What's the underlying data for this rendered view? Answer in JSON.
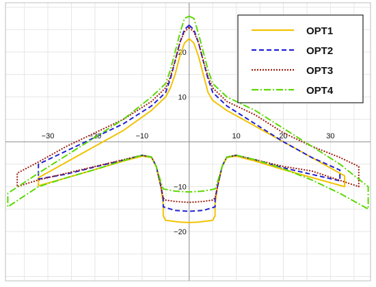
{
  "chart_data": {
    "type": "line",
    "title": "",
    "xlabel": "",
    "ylabel": "",
    "xlim": [
      -39,
      38.5
    ],
    "ylim": [
      -31,
      31
    ],
    "grid": true,
    "legend_position": "top-right",
    "x_ticks": [
      {
        "value": -30,
        "label": "−30"
      },
      {
        "value": -20,
        "label": "−20"
      },
      {
        "value": -10,
        "label": "−10"
      },
      {
        "value": 10,
        "label": "10"
      },
      {
        "value": 20,
        "label": "20"
      },
      {
        "value": 30,
        "label": "30"
      }
    ],
    "y_ticks": [
      {
        "value": 20,
        "label": "20"
      },
      {
        "value": 10,
        "label": "10"
      },
      {
        "value": -10,
        "label": "−10"
      },
      {
        "value": -20,
        "label": "−20"
      }
    ],
    "series": [
      {
        "name": "OPT1",
        "color": "#f2c200",
        "dash": "solid",
        "points": [
          [
            0,
            23
          ],
          [
            1,
            22
          ],
          [
            2,
            19
          ],
          [
            3,
            15
          ],
          [
            4,
            11
          ],
          [
            5,
            9.2
          ],
          [
            8,
            7
          ],
          [
            14,
            3.5
          ],
          [
            20,
            0
          ],
          [
            26,
            -3.5
          ],
          [
            33,
            -7.6
          ],
          [
            33,
            -10
          ],
          [
            20,
            -6.2
          ],
          [
            14,
            -4.3
          ],
          [
            10,
            -3.2
          ],
          [
            8,
            -3.5
          ],
          [
            7,
            -5.5
          ],
          [
            6,
            -10
          ],
          [
            5.5,
            -14
          ],
          [
            5.5,
            -16.5
          ],
          [
            5,
            -17.5
          ],
          [
            2,
            -17.9
          ],
          [
            0,
            -18
          ],
          [
            -2,
            -17.9
          ],
          [
            -5,
            -17.5
          ],
          [
            -5.5,
            -16.5
          ],
          [
            -5.5,
            -14
          ],
          [
            -6,
            -10
          ],
          [
            -7,
            -5.5
          ],
          [
            -8,
            -3.5
          ],
          [
            -10,
            -3.2
          ],
          [
            -14,
            -4.3
          ],
          [
            -20,
            -6.2
          ],
          [
            -26,
            -8
          ],
          [
            -32,
            -9.8
          ],
          [
            -32,
            -8
          ],
          [
            -26,
            -4.5
          ],
          [
            -20,
            -1
          ],
          [
            -14,
            2.5
          ],
          [
            -8,
            7
          ],
          [
            -5,
            10
          ],
          [
            -4,
            12
          ],
          [
            -3,
            15
          ],
          [
            -2,
            19
          ],
          [
            -1,
            22
          ],
          [
            0,
            23
          ]
        ]
      },
      {
        "name": "OPT2",
        "color": "#1f1fd6",
        "dash": "7,4",
        "points": [
          [
            0,
            26
          ],
          [
            1,
            25
          ],
          [
            2,
            22
          ],
          [
            3,
            18
          ],
          [
            4,
            14
          ],
          [
            5,
            11
          ],
          [
            8,
            8
          ],
          [
            14,
            4
          ],
          [
            20,
            0
          ],
          [
            26,
            -3.5
          ],
          [
            32,
            -6.3
          ],
          [
            32,
            -8.7
          ],
          [
            20,
            -5.8
          ],
          [
            14,
            -4
          ],
          [
            10,
            -3
          ],
          [
            8,
            -3.4
          ],
          [
            7,
            -5.4
          ],
          [
            6,
            -10
          ],
          [
            5.5,
            -12.8
          ],
          [
            5.5,
            -14.5
          ],
          [
            3,
            -15.3
          ],
          [
            0,
            -15.5
          ],
          [
            -3,
            -15.3
          ],
          [
            -5.5,
            -14.5
          ],
          [
            -5.5,
            -12.8
          ],
          [
            -6,
            -10
          ],
          [
            -7,
            -5.4
          ],
          [
            -8,
            -3.4
          ],
          [
            -10,
            -3
          ],
          [
            -14,
            -4.1
          ],
          [
            -20,
            -5.6
          ],
          [
            -26,
            -7.2
          ],
          [
            -32,
            -8.3
          ],
          [
            -32,
            -5
          ],
          [
            -26,
            -2
          ],
          [
            -20,
            1
          ],
          [
            -14,
            4
          ],
          [
            -8,
            8
          ],
          [
            -5,
            11
          ],
          [
            -4,
            14
          ],
          [
            -3,
            18
          ],
          [
            -2,
            22
          ],
          [
            -1,
            25
          ],
          [
            0,
            26
          ]
        ]
      },
      {
        "name": "OPT3",
        "color": "#9b1a0b",
        "dash": "2,2",
        "points": [
          [
            0,
            25.5
          ],
          [
            1,
            24.5
          ],
          [
            2,
            22
          ],
          [
            3,
            18
          ],
          [
            4,
            14.5
          ],
          [
            5,
            12
          ],
          [
            8,
            9
          ],
          [
            14,
            6
          ],
          [
            20,
            2
          ],
          [
            26,
            -1
          ],
          [
            32,
            -3.5
          ],
          [
            36,
            -5.5
          ],
          [
            36,
            -10
          ],
          [
            26,
            -6.5
          ],
          [
            20,
            -5.5
          ],
          [
            14,
            -4
          ],
          [
            10,
            -3
          ],
          [
            8,
            -3.4
          ],
          [
            7,
            -5.4
          ],
          [
            6,
            -10
          ],
          [
            5.5,
            -12.5
          ],
          [
            5,
            -13
          ],
          [
            3,
            -13.3
          ],
          [
            0,
            -13.5
          ],
          [
            -3,
            -13.3
          ],
          [
            -5,
            -13
          ],
          [
            -5.5,
            -12.5
          ],
          [
            -6,
            -10
          ],
          [
            -7,
            -5.4
          ],
          [
            -8,
            -3.4
          ],
          [
            -10,
            -3
          ],
          [
            -14,
            -4
          ],
          [
            -20,
            -5.5
          ],
          [
            -26,
            -7
          ],
          [
            -32,
            -8.5
          ],
          [
            -36.5,
            -10
          ],
          [
            -36.5,
            -7
          ],
          [
            -32,
            -4.5
          ],
          [
            -26,
            -1
          ],
          [
            -20,
            2
          ],
          [
            -14,
            5
          ],
          [
            -8,
            9
          ],
          [
            -5,
            12
          ],
          [
            -4,
            14.5
          ],
          [
            -3,
            18
          ],
          [
            -2,
            22
          ],
          [
            -1,
            24.5
          ],
          [
            0,
            25.5
          ]
        ]
      },
      {
        "name": "OPT4",
        "color": "#5ad800",
        "dash": "10,3,2,3",
        "points": [
          [
            0,
            28
          ],
          [
            1,
            27.5
          ],
          [
            2,
            24
          ],
          [
            3,
            20
          ],
          [
            4,
            16
          ],
          [
            5,
            13
          ],
          [
            8,
            10
          ],
          [
            14,
            7
          ],
          [
            20,
            3
          ],
          [
            26,
            -1
          ],
          [
            32,
            -5
          ],
          [
            38,
            -10
          ],
          [
            38,
            -15
          ],
          [
            32,
            -11.5
          ],
          [
            26,
            -8.5
          ],
          [
            20,
            -6
          ],
          [
            14,
            -4
          ],
          [
            10,
            -3
          ],
          [
            8,
            -3.4
          ],
          [
            7,
            -5.5
          ],
          [
            6,
            -9
          ],
          [
            5.5,
            -10.5
          ],
          [
            3,
            -11
          ],
          [
            0,
            -11.2
          ],
          [
            -3,
            -11
          ],
          [
            -5.5,
            -10.5
          ],
          [
            -6,
            -9
          ],
          [
            -7,
            -5.5
          ],
          [
            -8,
            -3.4
          ],
          [
            -10,
            -3
          ],
          [
            -14,
            -4.2
          ],
          [
            -20,
            -6.2
          ],
          [
            -26,
            -8
          ],
          [
            -32,
            -10
          ],
          [
            -38.5,
            -14.5
          ],
          [
            -38.5,
            -11.5
          ],
          [
            -32,
            -7
          ],
          [
            -26,
            -3
          ],
          [
            -20,
            1
          ],
          [
            -14,
            5
          ],
          [
            -8,
            10
          ],
          [
            -5,
            13
          ],
          [
            -4,
            16
          ],
          [
            -3,
            20
          ],
          [
            -2,
            24
          ],
          [
            -1,
            27.5
          ],
          [
            0,
            28
          ]
        ]
      }
    ]
  }
}
